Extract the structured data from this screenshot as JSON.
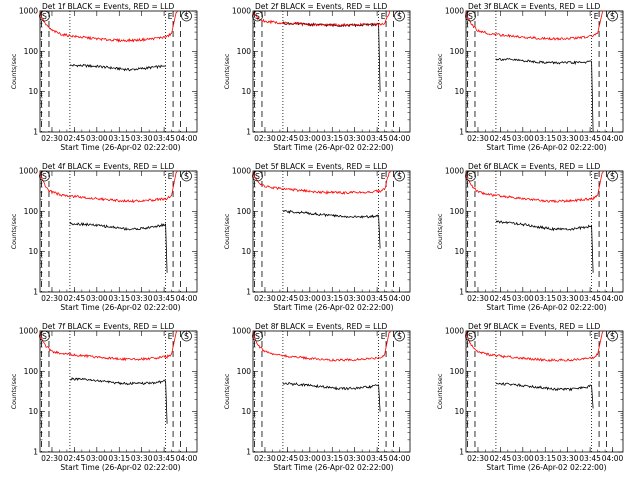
{
  "figure": {
    "legend_text": "BLACK = Events, RED = LLD",
    "xlabel": "Start Time (26-Apr-02 02:22:00)",
    "ylabel": "Counts/sec",
    "y_ticks": [
      "1",
      "10",
      "100",
      "1000"
    ],
    "x_ticks": [
      "02:30",
      "02:45",
      "03:00",
      "03:15",
      "03:30",
      "03:45",
      "04:00"
    ],
    "marker_E": "E",
    "marker_S": "S",
    "colors": {
      "events": "#000000",
      "lld": "#ff0000",
      "axes": "#000000"
    }
  },
  "chart_data": [
    {
      "type": "line",
      "title": "Det 1f",
      "x_unit": "minutes after 02:22",
      "ylim": [
        1,
        1000
      ],
      "y_scale": "log",
      "xlim": [
        0,
        105
      ],
      "vlines_dashed": [
        1,
        6,
        89,
        94
      ],
      "vlines_dotted": [
        20,
        84
      ],
      "markers": {
        "S": [
          1,
          96
        ],
        "E": [
          89
        ]
      },
      "series": [
        {
          "name": "BLACK = Events",
          "x": [
            20,
            30,
            40,
            50,
            60,
            70,
            80,
            84
          ],
          "values": [
            45,
            44,
            42,
            38,
            35,
            38,
            42,
            42
          ]
        },
        {
          "name": "RED = LLD",
          "x": [
            0,
            1,
            4,
            8,
            15,
            25,
            35,
            45,
            55,
            65,
            75,
            85,
            88,
            91,
            92
          ],
          "values": [
            950,
            700,
            450,
            330,
            260,
            230,
            210,
            195,
            185,
            190,
            205,
            230,
            280,
            900,
            1000
          ]
        }
      ]
    },
    {
      "type": "line",
      "title": "Det 2f",
      "x_unit": "minutes after 02:22",
      "ylim": [
        1,
        1000
      ],
      "y_scale": "log",
      "xlim": [
        0,
        105
      ],
      "vlines_dashed": [
        1,
        6,
        89,
        94
      ],
      "vlines_dotted": [
        20,
        84
      ],
      "markers": {
        "S": [
          1,
          96
        ],
        "E": [
          89
        ]
      },
      "series": [
        {
          "name": "BLACK = Events",
          "x": [
            20,
            30,
            40,
            50,
            60,
            70,
            80,
            84,
            85
          ],
          "values": [
            500,
            480,
            460,
            450,
            440,
            445,
            460,
            470,
            10
          ]
        },
        {
          "name": "RED = LLD",
          "x": [
            0,
            1,
            4,
            8,
            15,
            25,
            35,
            45,
            55,
            65,
            75,
            85,
            88,
            91,
            92
          ],
          "values": [
            950,
            800,
            620,
            560,
            520,
            490,
            470,
            460,
            455,
            455,
            460,
            475,
            500,
            900,
            1000
          ]
        }
      ]
    },
    {
      "type": "line",
      "title": "Det 3f",
      "x_unit": "minutes after 02:22",
      "ylim": [
        1,
        1000
      ],
      "y_scale": "log",
      "xlim": [
        0,
        105
      ],
      "vlines_dashed": [
        1,
        6,
        89,
        94
      ],
      "vlines_dotted": [
        20,
        84
      ],
      "markers": {
        "S": [
          1,
          96
        ],
        "E": [
          89
        ]
      },
      "series": [
        {
          "name": "BLACK = Events",
          "x": [
            20,
            30,
            40,
            50,
            60,
            70,
            80,
            84,
            85
          ],
          "values": [
            65,
            62,
            58,
            54,
            52,
            52,
            54,
            55,
            1
          ]
        },
        {
          "name": "RED = LLD",
          "x": [
            0,
            1,
            4,
            8,
            15,
            25,
            35,
            45,
            55,
            65,
            75,
            85,
            88,
            91,
            92
          ],
          "values": [
            950,
            700,
            450,
            330,
            280,
            250,
            230,
            215,
            205,
            205,
            215,
            240,
            280,
            900,
            1000
          ]
        }
      ]
    },
    {
      "type": "line",
      "title": "Det 4f",
      "x_unit": "minutes after 02:22",
      "ylim": [
        1,
        1000
      ],
      "y_scale": "log",
      "xlim": [
        0,
        105
      ],
      "vlines_dashed": [
        1,
        6,
        89,
        94
      ],
      "vlines_dotted": [
        20,
        84
      ],
      "markers": {
        "S": [
          1,
          96
        ],
        "E": [
          89
        ]
      },
      "series": [
        {
          "name": "BLACK = Events",
          "x": [
            20,
            30,
            40,
            50,
            60,
            70,
            80,
            84,
            85
          ],
          "values": [
            50,
            48,
            44,
            40,
            36,
            38,
            44,
            48,
            3
          ]
        },
        {
          "name": "RED = LLD",
          "x": [
            0,
            1,
            4,
            8,
            15,
            25,
            35,
            45,
            55,
            65,
            75,
            85,
            88,
            91,
            92
          ],
          "values": [
            950,
            650,
            400,
            300,
            250,
            230,
            210,
            195,
            180,
            180,
            190,
            210,
            250,
            900,
            1000
          ]
        }
      ]
    },
    {
      "type": "line",
      "title": "Det 5f",
      "x_unit": "minutes after 02:22",
      "ylim": [
        1,
        1000
      ],
      "y_scale": "log",
      "xlim": [
        0,
        105
      ],
      "vlines_dashed": [
        1,
        6,
        89,
        94
      ],
      "vlines_dotted": [
        20,
        84
      ],
      "markers": {
        "S": [
          1,
          96
        ],
        "E": [
          89
        ]
      },
      "series": [
        {
          "name": "BLACK = Events",
          "x": [
            20,
            30,
            40,
            50,
            60,
            70,
            80,
            84,
            85
          ],
          "values": [
            100,
            95,
            88,
            80,
            75,
            72,
            75,
            78,
            12
          ]
        },
        {
          "name": "RED = LLD",
          "x": [
            0,
            1,
            4,
            8,
            15,
            25,
            35,
            45,
            55,
            65,
            75,
            85,
            88,
            91,
            92
          ],
          "values": [
            950,
            750,
            500,
            420,
            380,
            350,
            320,
            300,
            290,
            290,
            300,
            320,
            350,
            900,
            1000
          ]
        }
      ]
    },
    {
      "type": "line",
      "title": "Det 6f",
      "x_unit": "minutes after 02:22",
      "ylim": [
        1,
        1000
      ],
      "y_scale": "log",
      "xlim": [
        0,
        105
      ],
      "vlines_dashed": [
        1,
        6,
        89,
        94
      ],
      "vlines_dotted": [
        20,
        84
      ],
      "markers": {
        "S": [
          1,
          96
        ],
        "E": [
          89
        ]
      },
      "series": [
        {
          "name": "BLACK = Events",
          "x": [
            20,
            30,
            40,
            50,
            60,
            70,
            80,
            84,
            85
          ],
          "values": [
            55,
            52,
            46,
            40,
            36,
            36,
            40,
            44,
            3
          ]
        },
        {
          "name": "RED = LLD",
          "x": [
            0,
            1,
            4,
            8,
            15,
            25,
            35,
            45,
            55,
            65,
            75,
            85,
            88,
            91,
            92
          ],
          "values": [
            950,
            650,
            420,
            310,
            260,
            235,
            215,
            195,
            180,
            180,
            190,
            210,
            250,
            900,
            1000
          ]
        }
      ]
    },
    {
      "type": "line",
      "title": "Det 7f",
      "x_unit": "minutes after 02:22",
      "ylim": [
        1,
        1000
      ],
      "y_scale": "log",
      "xlim": [
        0,
        105
      ],
      "vlines_dashed": [
        1,
        6,
        89,
        94
      ],
      "vlines_dotted": [
        20,
        84
      ],
      "markers": {
        "S": [
          1,
          96
        ],
        "E": [
          89
        ]
      },
      "series": [
        {
          "name": "BLACK = Events",
          "x": [
            20,
            30,
            40,
            50,
            60,
            70,
            80,
            84,
            85
          ],
          "values": [
            65,
            62,
            58,
            52,
            50,
            50,
            54,
            58,
            5
          ]
        },
        {
          "name": "RED = LLD",
          "x": [
            0,
            1,
            4,
            8,
            15,
            25,
            35,
            45,
            55,
            65,
            75,
            85,
            88,
            91,
            92
          ],
          "values": [
            950,
            650,
            420,
            310,
            270,
            250,
            230,
            215,
            200,
            200,
            210,
            230,
            270,
            900,
            1000
          ]
        }
      ]
    },
    {
      "type": "line",
      "title": "Det 8f",
      "x_unit": "minutes after 02:22",
      "ylim": [
        1,
        1000
      ],
      "y_scale": "log",
      "xlim": [
        0,
        105
      ],
      "vlines_dashed": [
        1,
        6,
        89,
        94
      ],
      "vlines_dotted": [
        20,
        84
      ],
      "markers": {
        "S": [
          1,
          96
        ],
        "E": [
          89
        ]
      },
      "series": [
        {
          "name": "BLACK = Events",
          "x": [
            20,
            30,
            40,
            50,
            60,
            70,
            80,
            84,
            85
          ],
          "values": [
            50,
            48,
            44,
            40,
            37,
            38,
            42,
            46,
            10
          ]
        },
        {
          "name": "RED = LLD",
          "x": [
            0,
            1,
            4,
            8,
            15,
            25,
            35,
            45,
            55,
            65,
            75,
            85,
            88,
            91,
            92
          ],
          "values": [
            950,
            650,
            420,
            310,
            260,
            235,
            215,
            200,
            190,
            190,
            200,
            220,
            260,
            900,
            1000
          ]
        }
      ]
    },
    {
      "type": "line",
      "title": "Det 9f",
      "x_unit": "minutes after 02:22",
      "ylim": [
        1,
        1000
      ],
      "y_scale": "log",
      "xlim": [
        0,
        105
      ],
      "vlines_dashed": [
        1,
        6,
        89,
        94
      ],
      "vlines_dotted": [
        20,
        84
      ],
      "markers": {
        "S": [
          1,
          96
        ],
        "E": [
          89
        ]
      },
      "series": [
        {
          "name": "BLACK = Events",
          "x": [
            20,
            30,
            40,
            50,
            60,
            70,
            80,
            84,
            85
          ],
          "values": [
            50,
            48,
            44,
            40,
            36,
            36,
            40,
            44,
            12
          ]
        },
        {
          "name": "RED = LLD",
          "x": [
            0,
            1,
            4,
            8,
            15,
            25,
            35,
            45,
            55,
            65,
            75,
            85,
            88,
            91,
            92
          ],
          "values": [
            950,
            650,
            420,
            310,
            260,
            235,
            215,
            200,
            190,
            190,
            200,
            220,
            260,
            900,
            1000
          ]
        }
      ]
    }
  ]
}
